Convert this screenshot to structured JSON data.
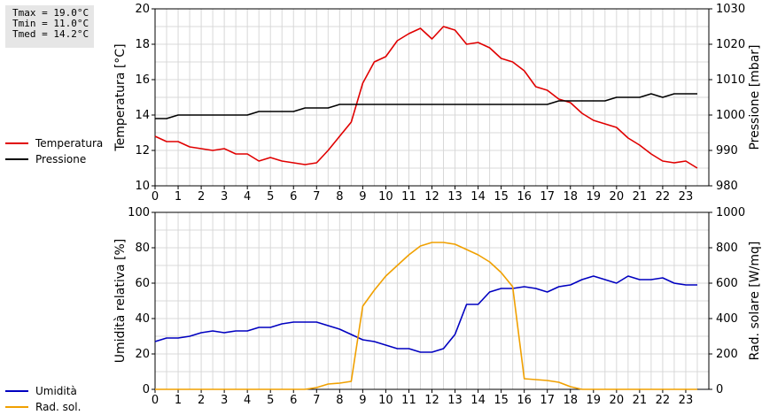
{
  "stats": {
    "tmax": "Tmax = 19.0°C",
    "tmin": "Tmin = 11.0°C",
    "tmed": "Tmed = 14.2°C"
  },
  "legend_top": [
    {
      "label": "Temperatura",
      "color": "#e00000"
    },
    {
      "label": "Pressione",
      "color": "#000000"
    }
  ],
  "legend_bottom": [
    {
      "label": "Umidità",
      "color": "#0000c0"
    },
    {
      "label": "Rad. sol.",
      "color": "#f0a000"
    }
  ],
  "chart_data": [
    {
      "type": "line",
      "x": [
        0,
        0.5,
        1,
        1.5,
        2,
        2.5,
        3,
        3.5,
        4,
        4.5,
        5,
        5.5,
        6,
        6.5,
        7,
        7.5,
        8,
        8.5,
        9,
        9.5,
        10,
        10.5,
        11,
        11.5,
        12,
        12.5,
        13,
        13.5,
        14,
        14.5,
        15,
        15.5,
        16,
        16.5,
        17,
        17.5,
        18,
        18.5,
        19,
        19.5,
        20,
        20.5,
        21,
        21.5,
        22,
        22.5,
        23,
        23.5
      ],
      "series": [
        {
          "name": "Temperatura",
          "axis": "left",
          "color": "#e00000",
          "values": [
            12.8,
            12.5,
            12.5,
            12.2,
            12.1,
            12.0,
            12.1,
            11.8,
            11.8,
            11.4,
            11.6,
            11.4,
            11.3,
            11.2,
            11.3,
            12.0,
            12.8,
            13.6,
            15.8,
            17.0,
            17.3,
            18.2,
            18.6,
            18.9,
            18.3,
            19.0,
            18.8,
            18.0,
            18.1,
            17.8,
            17.2,
            17.0,
            16.5,
            15.6,
            15.4,
            14.9,
            14.7,
            14.1,
            13.7,
            13.5,
            13.3,
            12.7,
            12.3,
            11.8,
            11.4,
            11.3,
            11.4,
            11.0
          ]
        },
        {
          "name": "Pressione",
          "axis": "right",
          "color": "#000000",
          "values": [
            999,
            999,
            1000,
            1000,
            1000,
            1000,
            1000,
            1000,
            1000,
            1001,
            1001,
            1001,
            1001,
            1002,
            1002,
            1002,
            1003,
            1003,
            1003,
            1003,
            1003,
            1003,
            1003,
            1003,
            1003,
            1003,
            1003,
            1003,
            1003,
            1003,
            1003,
            1003,
            1003,
            1003,
            1003,
            1004,
            1004,
            1004,
            1004,
            1004,
            1005,
            1005,
            1005,
            1006,
            1005,
            1006,
            1006,
            1006
          ]
        }
      ],
      "xlim": [
        0,
        24
      ],
      "xticks": [
        "0",
        "1",
        "2",
        "3",
        "4",
        "5",
        "6",
        "7",
        "8",
        "9",
        "10",
        "11",
        "12",
        "13",
        "14",
        "15",
        "16",
        "17",
        "18",
        "19",
        "20",
        "21",
        "22",
        "23"
      ],
      "ylabel": "Temperatura [°C]",
      "ylim": [
        10,
        20
      ],
      "yticks": [
        "10",
        "12",
        "14",
        "16",
        "18",
        "20"
      ],
      "y2label": "Pressione [mbar]",
      "y2lim": [
        980,
        1030
      ],
      "y2ticks": [
        "980",
        "990",
        "1000",
        "1010",
        "1020",
        "1030"
      ],
      "grid": true,
      "legend": "left"
    },
    {
      "type": "line",
      "x": [
        0,
        0.5,
        1,
        1.5,
        2,
        2.5,
        3,
        3.5,
        4,
        4.5,
        5,
        5.5,
        6,
        6.5,
        7,
        7.5,
        8,
        8.5,
        9,
        9.5,
        10,
        10.5,
        11,
        11.5,
        12,
        12.5,
        13,
        13.5,
        14,
        14.5,
        15,
        15.5,
        16,
        16.5,
        17,
        17.5,
        18,
        18.5,
        19,
        19.5,
        20,
        20.5,
        21,
        21.5,
        22,
        22.5,
        23,
        23.5
      ],
      "series": [
        {
          "name": "Umidità",
          "axis": "left",
          "color": "#0000c0",
          "values": [
            27,
            29,
            29,
            30,
            32,
            33,
            32,
            33,
            33,
            35,
            35,
            37,
            38,
            38,
            38,
            36,
            34,
            31,
            28,
            27,
            25,
            23,
            23,
            21,
            21,
            23,
            31,
            48,
            48,
            55,
            57,
            57,
            58,
            57,
            55,
            58,
            59,
            62,
            64,
            62,
            60,
            64,
            62,
            62,
            63,
            60,
            59,
            59
          ]
        },
        {
          "name": "Rad. sol.",
          "axis": "right",
          "color": "#f0a000",
          "values": [
            0,
            0,
            0,
            0,
            0,
            0,
            0,
            0,
            0,
            0,
            0,
            0,
            0,
            0,
            10,
            30,
            35,
            45,
            470,
            560,
            640,
            700,
            760,
            810,
            830,
            830,
            820,
            790,
            760,
            720,
            660,
            580,
            60,
            55,
            50,
            40,
            15,
            0,
            0,
            0,
            0,
            0,
            0,
            0,
            0,
            0,
            0,
            0
          ]
        }
      ],
      "xlim": [
        0,
        24
      ],
      "xticks": [
        "0",
        "1",
        "2",
        "3",
        "4",
        "5",
        "6",
        "7",
        "8",
        "9",
        "10",
        "11",
        "12",
        "13",
        "14",
        "15",
        "16",
        "17",
        "18",
        "19",
        "20",
        "21",
        "22",
        "23"
      ],
      "ylabel": "Umidità relativa [%]",
      "ylim": [
        0,
        100
      ],
      "yticks": [
        "0",
        "20",
        "40",
        "60",
        "80",
        "100"
      ],
      "y2label": "Rad. solare [W/mq]",
      "y2lim": [
        0,
        1000
      ],
      "y2ticks": [
        "0",
        "200",
        "400",
        "600",
        "800",
        "1000"
      ],
      "grid": true,
      "legend": "left"
    }
  ]
}
